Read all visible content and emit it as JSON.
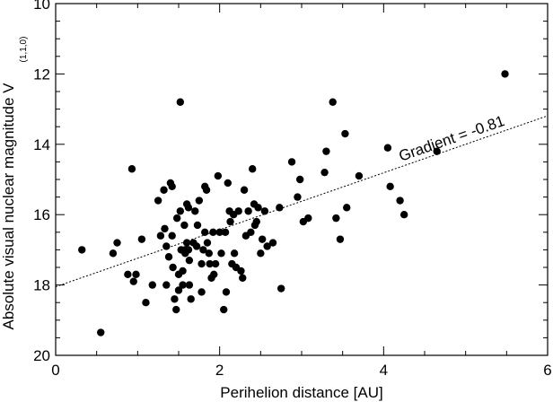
{
  "chart_data": {
    "type": "scatter",
    "title": "",
    "xlabel": "Perihelion distance [AU]",
    "ylabel": "Absolute visual nuclear magnitude V",
    "ylabel_subscript": "(1,1,0)",
    "xlim": [
      0,
      6
    ],
    "ylim": [
      20,
      10
    ],
    "y_inverted": true,
    "x_ticks": [
      "0",
      "2",
      "4",
      "6"
    ],
    "y_ticks": [
      "10",
      "12",
      "14",
      "16",
      "18",
      "20"
    ],
    "grid": false,
    "fit_line": {
      "style": "dotted",
      "gradient": -0.81,
      "intercept": 18.05,
      "label": "Gradient = -0.81"
    },
    "points": [
      {
        "x": 0.32,
        "y": 17.0
      },
      {
        "x": 0.55,
        "y": 19.35
      },
      {
        "x": 0.7,
        "y": 17.1
      },
      {
        "x": 0.75,
        "y": 16.8
      },
      {
        "x": 0.88,
        "y": 17.7
      },
      {
        "x": 0.93,
        "y": 14.7
      },
      {
        "x": 0.95,
        "y": 17.9
      },
      {
        "x": 0.98,
        "y": 17.7
      },
      {
        "x": 1.05,
        "y": 16.7
      },
      {
        "x": 1.1,
        "y": 18.5
      },
      {
        "x": 1.18,
        "y": 18.0
      },
      {
        "x": 1.25,
        "y": 15.6
      },
      {
        "x": 1.28,
        "y": 16.6
      },
      {
        "x": 1.32,
        "y": 15.3
      },
      {
        "x": 1.33,
        "y": 16.4
      },
      {
        "x": 1.35,
        "y": 16.9
      },
      {
        "x": 1.35,
        "y": 18.0
      },
      {
        "x": 1.38,
        "y": 17.2
      },
      {
        "x": 1.4,
        "y": 15.1
      },
      {
        "x": 1.42,
        "y": 15.2
      },
      {
        "x": 1.42,
        "y": 16.6
      },
      {
        "x": 1.43,
        "y": 17.5
      },
      {
        "x": 1.45,
        "y": 18.4
      },
      {
        "x": 1.47,
        "y": 18.7
      },
      {
        "x": 1.48,
        "y": 16.1
      },
      {
        "x": 1.5,
        "y": 17.7
      },
      {
        "x": 1.5,
        "y": 18.15
      },
      {
        "x": 1.52,
        "y": 12.8
      },
      {
        "x": 1.52,
        "y": 15.9
      },
      {
        "x": 1.53,
        "y": 17.0
      },
      {
        "x": 1.55,
        "y": 17.6
      },
      {
        "x": 1.55,
        "y": 18.0
      },
      {
        "x": 1.57,
        "y": 16.3
      },
      {
        "x": 1.58,
        "y": 17.0
      },
      {
        "x": 1.58,
        "y": 17.1
      },
      {
        "x": 1.6,
        "y": 15.7
      },
      {
        "x": 1.6,
        "y": 16.8
      },
      {
        "x": 1.62,
        "y": 15.8
      },
      {
        "x": 1.62,
        "y": 17.0
      },
      {
        "x": 1.63,
        "y": 17.3
      },
      {
        "x": 1.63,
        "y": 18.0
      },
      {
        "x": 1.65,
        "y": 18.4
      },
      {
        "x": 1.68,
        "y": 16.8
      },
      {
        "x": 1.7,
        "y": 15.9
      },
      {
        "x": 1.72,
        "y": 16.9
      },
      {
        "x": 1.73,
        "y": 16.3
      },
      {
        "x": 1.75,
        "y": 15.6
      },
      {
        "x": 1.78,
        "y": 17.4
      },
      {
        "x": 1.78,
        "y": 18.2
      },
      {
        "x": 1.8,
        "y": 17.0
      },
      {
        "x": 1.82,
        "y": 15.2
      },
      {
        "x": 1.82,
        "y": 16.5
      },
      {
        "x": 1.84,
        "y": 15.3
      },
      {
        "x": 1.85,
        "y": 16.8
      },
      {
        "x": 1.87,
        "y": 17.1
      },
      {
        "x": 1.88,
        "y": 17.4
      },
      {
        "x": 1.9,
        "y": 17.8
      },
      {
        "x": 1.92,
        "y": 16.5
      },
      {
        "x": 1.93,
        "y": 17.7
      },
      {
        "x": 1.95,
        "y": 17.4
      },
      {
        "x": 1.98,
        "y": 14.9
      },
      {
        "x": 2.0,
        "y": 16.5
      },
      {
        "x": 2.02,
        "y": 17.1
      },
      {
        "x": 2.05,
        "y": 18.7
      },
      {
        "x": 2.07,
        "y": 16.5
      },
      {
        "x": 2.08,
        "y": 18.2
      },
      {
        "x": 2.1,
        "y": 15.1
      },
      {
        "x": 2.12,
        "y": 15.9
      },
      {
        "x": 2.13,
        "y": 16.2
      },
      {
        "x": 2.15,
        "y": 17.4
      },
      {
        "x": 2.17,
        "y": 16.0
      },
      {
        "x": 2.18,
        "y": 17.1
      },
      {
        "x": 2.2,
        "y": 17.5
      },
      {
        "x": 2.23,
        "y": 15.9
      },
      {
        "x": 2.26,
        "y": 17.6
      },
      {
        "x": 2.28,
        "y": 17.8
      },
      {
        "x": 2.3,
        "y": 15.3
      },
      {
        "x": 2.32,
        "y": 16.6
      },
      {
        "x": 2.35,
        "y": 15.9
      },
      {
        "x": 2.38,
        "y": 16.5
      },
      {
        "x": 2.4,
        "y": 14.7
      },
      {
        "x": 2.42,
        "y": 15.7
      },
      {
        "x": 2.43,
        "y": 16.3
      },
      {
        "x": 2.45,
        "y": 16.2
      },
      {
        "x": 2.47,
        "y": 15.8
      },
      {
        "x": 2.5,
        "y": 17.1
      },
      {
        "x": 2.52,
        "y": 16.7
      },
      {
        "x": 2.55,
        "y": 15.9
      },
      {
        "x": 2.58,
        "y": 16.9
      },
      {
        "x": 2.65,
        "y": 16.8
      },
      {
        "x": 2.73,
        "y": 15.8
      },
      {
        "x": 2.75,
        "y": 18.1
      },
      {
        "x": 2.88,
        "y": 14.5
      },
      {
        "x": 2.95,
        "y": 15.5
      },
      {
        "x": 2.98,
        "y": 15.0
      },
      {
        "x": 3.02,
        "y": 16.2
      },
      {
        "x": 3.08,
        "y": 16.1
      },
      {
        "x": 3.28,
        "y": 14.8
      },
      {
        "x": 3.3,
        "y": 14.2
      },
      {
        "x": 3.38,
        "y": 12.8
      },
      {
        "x": 3.42,
        "y": 16.1
      },
      {
        "x": 3.47,
        "y": 16.7
      },
      {
        "x": 3.53,
        "y": 13.7
      },
      {
        "x": 3.55,
        "y": 15.8
      },
      {
        "x": 3.7,
        "y": 14.9
      },
      {
        "x": 4.05,
        "y": 14.1
      },
      {
        "x": 4.08,
        "y": 15.2
      },
      {
        "x": 4.2,
        "y": 15.6
      },
      {
        "x": 4.25,
        "y": 16.0
      },
      {
        "x": 4.65,
        "y": 14.2
      },
      {
        "x": 5.48,
        "y": 12.0
      }
    ]
  }
}
